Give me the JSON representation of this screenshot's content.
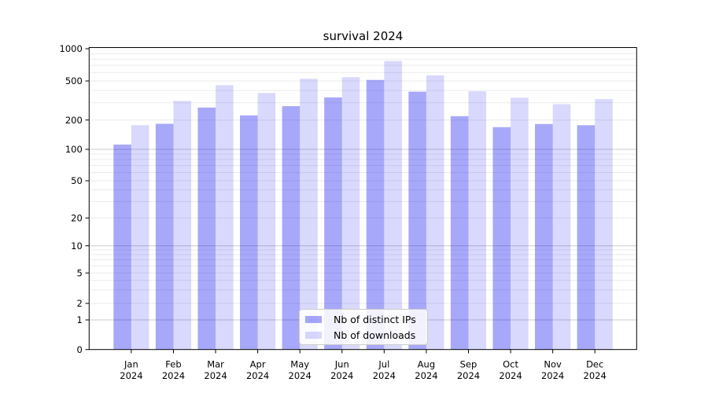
{
  "title": "survival 2024",
  "chart_data": {
    "type": "bar",
    "title": "survival 2024",
    "categories": [
      "Jan",
      "Feb",
      "Mar",
      "Apr",
      "May",
      "Jun",
      "Jul",
      "Aug",
      "Sep",
      "Oct",
      "Nov",
      "Dec"
    ],
    "category_year": "2024",
    "series": [
      {
        "name": "Nb of distinct IPs",
        "color": "rgba(0,0,240,0.34)",
        "values": [
          112,
          183,
          268,
          223,
          277,
          340,
          511,
          389,
          219,
          169,
          182,
          177
        ]
      },
      {
        "name": "Nb of downloads",
        "color": "rgba(0,0,240,0.15)",
        "values": [
          177,
          313,
          452,
          377,
          524,
          542,
          770,
          565,
          393,
          338,
          290,
          327
        ]
      }
    ],
    "yscale": "symlog",
    "y_ticks": [
      0,
      1,
      2,
      5,
      10,
      20,
      50,
      100,
      200,
      500,
      1000
    ],
    "ylim": [
      0,
      1000
    ],
    "grid": true,
    "legend_position": "lower-center"
  },
  "legend": {
    "items": [
      {
        "label": "Nb of distinct IPs",
        "color": "rgba(0,0,240,0.34)"
      },
      {
        "label": "Nb of downloads",
        "color": "rgba(0,0,240,0.15)"
      }
    ]
  },
  "colors": {
    "background": "#ffffff",
    "axis": "#000000",
    "tick_text": "#000000",
    "grid_minor": "#ebebeb",
    "grid_major": "#cccccc",
    "bar_distinct_ips": "rgba(0,0,240,0.34)",
    "bar_downloads": "rgba(0,0,240,0.15)"
  }
}
